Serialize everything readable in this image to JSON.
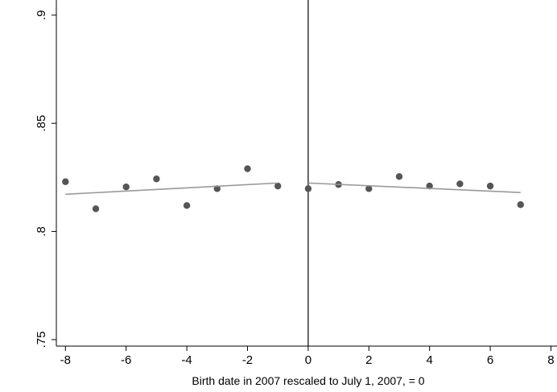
{
  "chart_data": {
    "type": "scatter",
    "xlabel": "Birth date in 2007 rescaled to July 1, 2007, = 0",
    "xlim": [
      -8.3,
      8.2
    ],
    "xticks": [
      -8,
      -6,
      -4,
      -2,
      0,
      2,
      4,
      6,
      8
    ],
    "ylim": [
      0.747,
      0.907
    ],
    "yticks": [
      {
        "value": 0.75,
        "label": ".75"
      },
      {
        "value": 0.8,
        "label": ".8"
      },
      {
        "value": 0.85,
        "label": ".85"
      },
      {
        "value": 0.9,
        "label": ".9"
      }
    ],
    "xline": 0,
    "series": [
      {
        "mode": "markers",
        "color": "#555555",
        "x": [
          -8,
          -7,
          -6,
          -5,
          -4,
          -3,
          -2,
          -1,
          0,
          1,
          2,
          3,
          4,
          5,
          6,
          7
        ],
        "values": [
          0.823,
          0.8105,
          0.8206,
          0.8243,
          0.812,
          0.8198,
          0.829,
          0.821,
          0.8198,
          0.8217,
          0.8198,
          0.8254,
          0.821,
          0.822,
          0.821,
          0.8124
        ]
      },
      {
        "mode": "line",
        "color": "#999999",
        "x": [
          -8,
          -1
        ],
        "values": [
          0.8172,
          0.8224
        ]
      },
      {
        "mode": "line",
        "color": "#999999",
        "x": [
          0,
          7
        ],
        "values": [
          0.8224,
          0.818
        ]
      }
    ]
  }
}
